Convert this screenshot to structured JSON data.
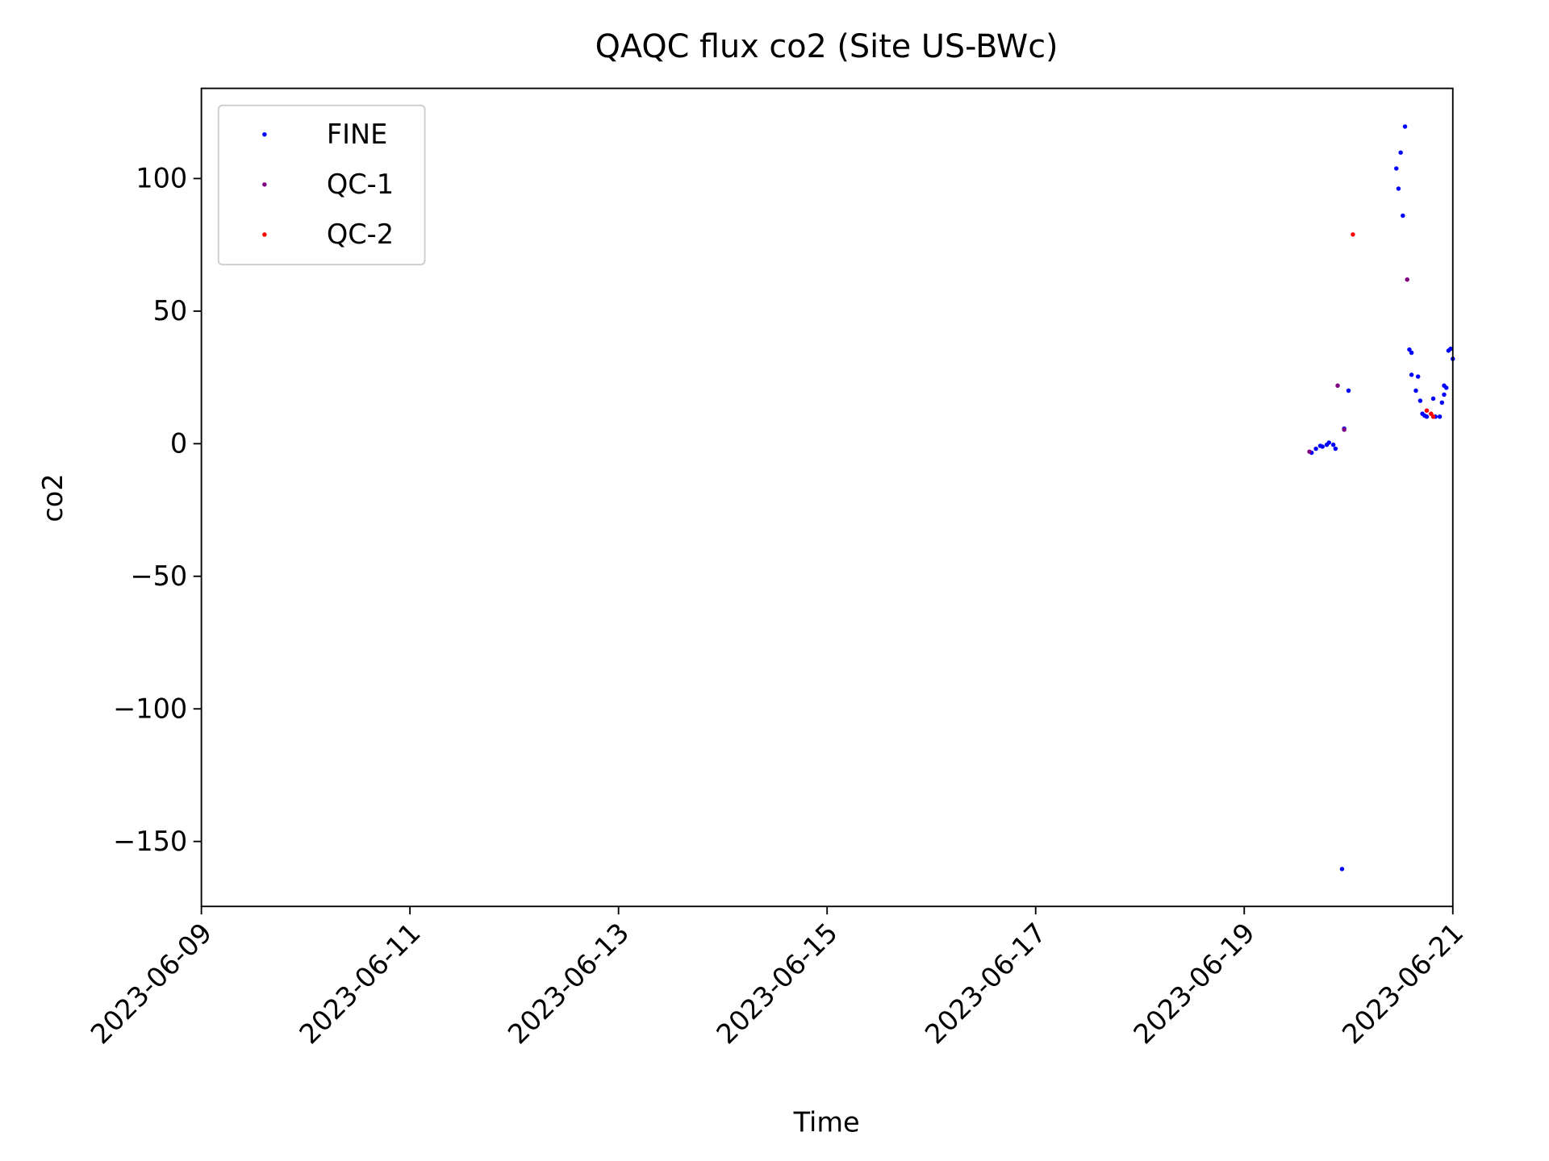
{
  "chart_data": {
    "type": "scatter",
    "title": "QAQC flux co2 (Site US-BWc)",
    "x_label": "Time",
    "y_label": "co2",
    "xlim": [
      "2023-06-09",
      "2023-06-21"
    ],
    "xticks": [
      "2023-06-09",
      "2023-06-11",
      "2023-06-13",
      "2023-06-15",
      "2023-06-17",
      "2023-06-19",
      "2023-06-21"
    ],
    "ylim": [
      -174.5,
      134
    ],
    "yticks": [
      -150,
      -100,
      -50,
      0,
      50,
      100
    ],
    "legend": "upper left",
    "series": [
      {
        "name": "FINE",
        "color": "#0000ff",
        "x": [
          "2023-06-19T15:30",
          "2023-06-19T16:30",
          "2023-06-19T17:30",
          "2023-06-19T18:00",
          "2023-06-19T19:00",
          "2023-06-19T19:30",
          "2023-06-19T20:30",
          "2023-06-19T21:00",
          "2023-06-19T22:30",
          "2023-06-19T23:00",
          "2023-06-20T00:00",
          "2023-06-20T11:00",
          "2023-06-20T11:30",
          "2023-06-20T12:00",
          "2023-06-20T12:30",
          "2023-06-20T13:00",
          "2023-06-20T14:00",
          "2023-06-20T14:30",
          "2023-06-20T14:30",
          "2023-06-20T15:30",
          "2023-06-20T16:00",
          "2023-06-20T16:30",
          "2023-06-20T17:00",
          "2023-06-20T17:30",
          "2023-06-20T18:00",
          "2023-06-20T19:30",
          "2023-06-20T20:00",
          "2023-06-20T21:00",
          "2023-06-20T21:30",
          "2023-06-20T22:00",
          "2023-06-20T22:00",
          "2023-06-20T22:30",
          "2023-06-20T23:00",
          "2023-06-20T23:30",
          "2023-06-21T00:00"
        ],
        "values": [
          -3.4,
          -1.9,
          -0.8,
          -1.1,
          -0.4,
          0.4,
          -0.4,
          -1.9,
          -160.4,
          5.7,
          20,
          103.8,
          96.2,
          109.8,
          86,
          119.6,
          35.5,
          34.3,
          26,
          20,
          25.3,
          16.2,
          11.3,
          10.6,
          10.2,
          17,
          10.2,
          10.2,
          15.5,
          21.9,
          18.5,
          21.1,
          35.1,
          35.8,
          32
        ]
      },
      {
        "name": "QC-1",
        "color": "#800080",
        "x": [
          "2023-06-19T15:00",
          "2023-06-19T21:30",
          "2023-06-19T23:00",
          "2023-06-20T13:30"
        ],
        "values": [
          -3,
          21.9,
          5.3,
          61.9
        ]
      },
      {
        "name": "QC-2",
        "color": "#ff0000",
        "x": [
          "2023-06-20T01:00",
          "2023-06-20T18:00",
          "2023-06-20T19:00",
          "2023-06-20T19:30"
        ],
        "values": [
          78.9,
          12.5,
          11.3,
          10.2
        ]
      }
    ]
  }
}
